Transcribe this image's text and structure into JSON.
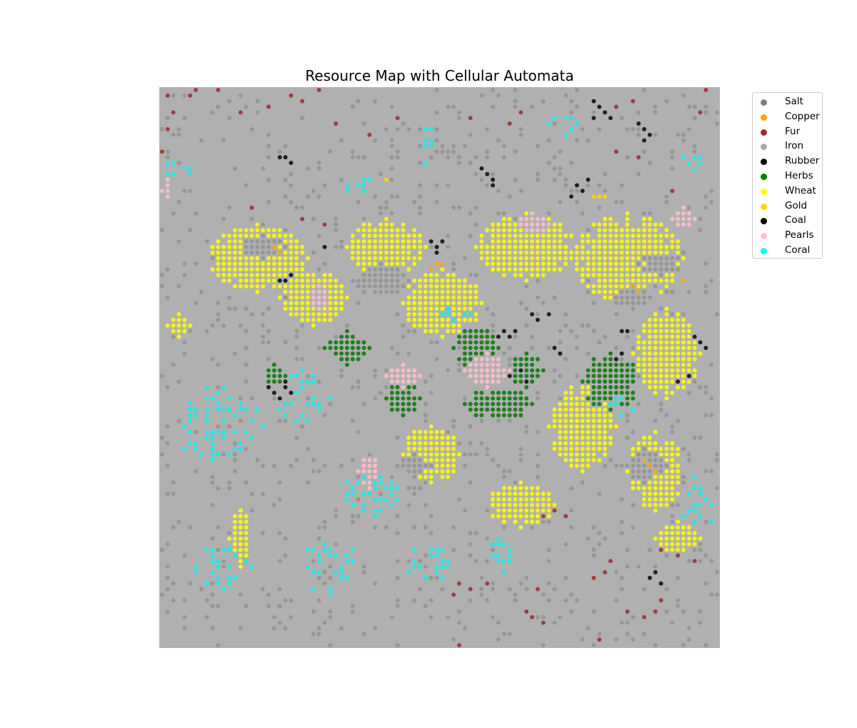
{
  "chart_data": {
    "type": "scatter",
    "title": "Resource Map with Cellular Automata",
    "xlabel": "",
    "ylabel": "",
    "axes_visible": false,
    "grid": false,
    "background_color": "#b0b0b0",
    "grid_size": [
      100,
      100
    ],
    "legend_position": "upper-right-outside",
    "legend": [
      {
        "name": "Salt",
        "color": "#808080"
      },
      {
        "name": "Copper",
        "color": "#ffa500"
      },
      {
        "name": "Fur",
        "color": "#a52a2a"
      },
      {
        "name": "Iron",
        "color": "#a9a9a9"
      },
      {
        "name": "Rubber",
        "color": "#000000"
      },
      {
        "name": "Herbs",
        "color": "#008000"
      },
      {
        "name": "Wheat",
        "color": "#ffff00"
      },
      {
        "name": "Gold",
        "color": "#ffd700"
      },
      {
        "name": "Coal",
        "color": "#000000"
      },
      {
        "name": "Pearls",
        "color": "#ffc0cb"
      },
      {
        "name": "Coral",
        "color": "#00ffff"
      }
    ],
    "regions": [
      {
        "series": "Wheat",
        "cx": 17,
        "cy": 30,
        "rx": 9,
        "ry": 6
      },
      {
        "series": "Wheat",
        "cx": 27,
        "cy": 37,
        "rx": 6,
        "ry": 5
      },
      {
        "series": "Wheat",
        "cx": 40,
        "cy": 28,
        "rx": 7,
        "ry": 5
      },
      {
        "series": "Wheat",
        "cx": 50,
        "cy": 38,
        "rx": 7,
        "ry": 6
      },
      {
        "series": "Wheat",
        "cx": 65,
        "cy": 28,
        "rx": 9,
        "ry": 6
      },
      {
        "series": "Wheat",
        "cx": 83,
        "cy": 30,
        "rx": 10,
        "ry": 8
      },
      {
        "series": "Wheat",
        "cx": 90,
        "cy": 47,
        "rx": 6,
        "ry": 8
      },
      {
        "series": "Wheat",
        "cx": 75,
        "cy": 60,
        "rx": 6,
        "ry": 8
      },
      {
        "series": "Wheat",
        "cx": 88,
        "cy": 68,
        "rx": 5,
        "ry": 7
      },
      {
        "series": "Wheat",
        "cx": 64,
        "cy": 74,
        "rx": 6,
        "ry": 4
      },
      {
        "series": "Wheat",
        "cx": 48,
        "cy": 65,
        "rx": 5,
        "ry": 5
      },
      {
        "series": "Wheat",
        "cx": 3,
        "cy": 42,
        "rx": 2,
        "ry": 2
      },
      {
        "series": "Wheat",
        "cx": 14,
        "cy": 80,
        "rx": 2,
        "ry": 5
      },
      {
        "series": "Wheat",
        "cx": 92,
        "cy": 80,
        "rx": 4,
        "ry": 3
      },
      {
        "series": "Herbs",
        "cx": 33,
        "cy": 46,
        "rx": 4,
        "ry": 3
      },
      {
        "series": "Herbs",
        "cx": 56,
        "cy": 46,
        "rx": 4,
        "ry": 4
      },
      {
        "series": "Herbs",
        "cx": 60,
        "cy": 56,
        "rx": 6,
        "ry": 3
      },
      {
        "series": "Herbs",
        "cx": 43,
        "cy": 55,
        "rx": 3,
        "ry": 3
      },
      {
        "series": "Herbs",
        "cx": 80,
        "cy": 52,
        "rx": 5,
        "ry": 5
      },
      {
        "series": "Herbs",
        "cx": 65,
        "cy": 50,
        "rx": 3,
        "ry": 3
      },
      {
        "series": "Herbs",
        "cx": 20,
        "cy": 51,
        "rx": 2,
        "ry": 2
      },
      {
        "series": "Salt",
        "cx": 18,
        "cy": 28,
        "rx": 4,
        "ry": 2
      },
      {
        "series": "Salt",
        "cx": 39,
        "cy": 34,
        "rx": 5,
        "ry": 3
      },
      {
        "series": "Salt",
        "cx": 89,
        "cy": 31,
        "rx": 4,
        "ry": 2
      },
      {
        "series": "Salt",
        "cx": 84,
        "cy": 37,
        "rx": 3,
        "ry": 2
      },
      {
        "series": "Salt",
        "cx": 86,
        "cy": 67,
        "rx": 4,
        "ry": 3
      },
      {
        "series": "Salt",
        "cx": 45,
        "cy": 67,
        "rx": 3,
        "ry": 2
      },
      {
        "series": "Pearls",
        "cx": 1,
        "cy": 18,
        "rx": 1,
        "ry": 2
      },
      {
        "series": "Pearls",
        "cx": 93,
        "cy": 23,
        "rx": 2,
        "ry": 2
      },
      {
        "series": "Pearls",
        "cx": 58,
        "cy": 50,
        "rx": 4,
        "ry": 3
      },
      {
        "series": "Pearls",
        "cx": 43,
        "cy": 51,
        "rx": 3,
        "ry": 2
      },
      {
        "series": "Pearls",
        "cx": 37,
        "cy": 68,
        "rx": 2,
        "ry": 3
      },
      {
        "series": "Pearls",
        "cx": 66,
        "cy": 24,
        "rx": 3,
        "ry": 2
      },
      {
        "series": "Pearls",
        "cx": 28,
        "cy": 37,
        "rx": 2,
        "ry": 2
      },
      {
        "series": "Coral",
        "cx": 47,
        "cy": 9,
        "rx": 2,
        "ry": 4
      },
      {
        "series": "Coral",
        "cx": 35,
        "cy": 17,
        "rx": 4,
        "ry": 2
      },
      {
        "series": "Coral",
        "cx": 10,
        "cy": 60,
        "rx": 8,
        "ry": 8
      },
      {
        "series": "Coral",
        "cx": 25,
        "cy": 55,
        "rx": 5,
        "ry": 5
      },
      {
        "series": "Coral",
        "cx": 38,
        "cy": 72,
        "rx": 6,
        "ry": 4
      },
      {
        "series": "Coral",
        "cx": 10,
        "cy": 85,
        "rx": 6,
        "ry": 5
      },
      {
        "series": "Coral",
        "cx": 30,
        "cy": 85,
        "rx": 6,
        "ry": 5
      },
      {
        "series": "Coral",
        "cx": 48,
        "cy": 84,
        "rx": 5,
        "ry": 4
      },
      {
        "series": "Coral",
        "cx": 60,
        "cy": 83,
        "rx": 4,
        "ry": 4
      },
      {
        "series": "Coral",
        "cx": 95,
        "cy": 74,
        "rx": 4,
        "ry": 5
      },
      {
        "series": "Coral",
        "cx": 3,
        "cy": 15,
        "rx": 3,
        "ry": 3
      },
      {
        "series": "Coral",
        "cx": 52,
        "cy": 40,
        "rx": 3,
        "ry": 2
      },
      {
        "series": "Coral",
        "cx": 95,
        "cy": 12,
        "rx": 2,
        "ry": 2
      },
      {
        "series": "Coral",
        "cx": 72,
        "cy": 6,
        "rx": 3,
        "ry": 2
      },
      {
        "series": "Coral",
        "cx": 82,
        "cy": 56,
        "rx": 3,
        "ry": 3
      }
    ],
    "points": [
      {
        "series": "Copper",
        "x": 20,
        "y": 28
      },
      {
        "series": "Copper",
        "x": 21,
        "y": 29
      },
      {
        "series": "Copper",
        "x": 49,
        "y": 31
      },
      {
        "series": "Copper",
        "x": 50,
        "y": 31
      },
      {
        "series": "Copper",
        "x": 48,
        "y": 32
      },
      {
        "series": "Copper",
        "x": 84,
        "y": 35
      },
      {
        "series": "Copper",
        "x": 85,
        "y": 36
      },
      {
        "series": "Copper",
        "x": 93,
        "y": 34
      },
      {
        "series": "Copper",
        "x": 86,
        "y": 66
      },
      {
        "series": "Copper",
        "x": 87,
        "y": 67
      },
      {
        "series": "Copper",
        "x": 88,
        "y": 68
      },
      {
        "series": "Gold",
        "x": 40,
        "y": 16
      },
      {
        "series": "Gold",
        "x": 77,
        "y": 19
      },
      {
        "series": "Gold",
        "x": 78,
        "y": 19
      },
      {
        "series": "Gold",
        "x": 79,
        "y": 19
      },
      {
        "series": "Rubber",
        "x": 77,
        "y": 2
      },
      {
        "series": "Rubber",
        "x": 78,
        "y": 3
      },
      {
        "series": "Rubber",
        "x": 79,
        "y": 4
      },
      {
        "series": "Rubber",
        "x": 77,
        "y": 5
      },
      {
        "series": "Rubber",
        "x": 80,
        "y": 5
      },
      {
        "series": "Rubber",
        "x": 85,
        "y": 6
      },
      {
        "series": "Rubber",
        "x": 86,
        "y": 7
      },
      {
        "series": "Rubber",
        "x": 87,
        "y": 8
      },
      {
        "series": "Rubber",
        "x": 86,
        "y": 9
      },
      {
        "series": "Rubber",
        "x": 57,
        "y": 14
      },
      {
        "series": "Rubber",
        "x": 58,
        "y": 15
      },
      {
        "series": "Rubber",
        "x": 59,
        "y": 16
      },
      {
        "series": "Rubber",
        "x": 59,
        "y": 17
      },
      {
        "series": "Rubber",
        "x": 74,
        "y": 17
      },
      {
        "series": "Rubber",
        "x": 75,
        "y": 18
      },
      {
        "series": "Rubber",
        "x": 73,
        "y": 19
      },
      {
        "series": "Rubber",
        "x": 76,
        "y": 16
      },
      {
        "series": "Rubber",
        "x": 48,
        "y": 27
      },
      {
        "series": "Rubber",
        "x": 49,
        "y": 28
      },
      {
        "series": "Rubber",
        "x": 50,
        "y": 27
      },
      {
        "series": "Rubber",
        "x": 49,
        "y": 29
      },
      {
        "series": "Rubber",
        "x": 22,
        "y": 12
      },
      {
        "series": "Rubber",
        "x": 23,
        "y": 13
      },
      {
        "series": "Rubber",
        "x": 21,
        "y": 12
      },
      {
        "series": "Coal",
        "x": 21,
        "y": 34
      },
      {
        "series": "Coal",
        "x": 22,
        "y": 34
      },
      {
        "series": "Coal",
        "x": 23,
        "y": 33
      },
      {
        "series": "Coal",
        "x": 19,
        "y": 53
      },
      {
        "series": "Coal",
        "x": 20,
        "y": 54
      },
      {
        "series": "Coal",
        "x": 22,
        "y": 53
      },
      {
        "series": "Coal",
        "x": 23,
        "y": 54
      },
      {
        "series": "Coal",
        "x": 21,
        "y": 55
      },
      {
        "series": "Coal",
        "x": 22,
        "y": 52
      },
      {
        "series": "Coal",
        "x": 61,
        "y": 43
      },
      {
        "series": "Coal",
        "x": 62,
        "y": 44
      },
      {
        "series": "Coal",
        "x": 63,
        "y": 43
      },
      {
        "series": "Coal",
        "x": 60,
        "y": 44
      },
      {
        "series": "Coal",
        "x": 66,
        "y": 40
      },
      {
        "series": "Coal",
        "x": 67,
        "y": 41
      },
      {
        "series": "Coal",
        "x": 69,
        "y": 40
      },
      {
        "series": "Coal",
        "x": 70,
        "y": 46
      },
      {
        "series": "Coal",
        "x": 71,
        "y": 47
      },
      {
        "series": "Coal",
        "x": 62,
        "y": 51
      },
      {
        "series": "Coal",
        "x": 64,
        "y": 50
      },
      {
        "series": "Coal",
        "x": 65,
        "y": 52
      },
      {
        "series": "Coal",
        "x": 82,
        "y": 43
      },
      {
        "series": "Coal",
        "x": 83,
        "y": 43
      },
      {
        "series": "Coal",
        "x": 81,
        "y": 48
      },
      {
        "series": "Coal",
        "x": 82,
        "y": 47
      },
      {
        "series": "Coal",
        "x": 95,
        "y": 44
      },
      {
        "series": "Coal",
        "x": 96,
        "y": 45
      },
      {
        "series": "Coal",
        "x": 97,
        "y": 46
      },
      {
        "series": "Coal",
        "x": 94,
        "y": 51
      },
      {
        "series": "Coal",
        "x": 92,
        "y": 52
      },
      {
        "series": "Coal",
        "x": 87,
        "y": 87
      },
      {
        "series": "Coal",
        "x": 88,
        "y": 86
      },
      {
        "series": "Coal",
        "x": 89,
        "y": 88
      },
      {
        "series": "Coal",
        "x": 29,
        "y": 28
      },
      {
        "series": "Fur",
        "x": 1,
        "y": 1
      },
      {
        "series": "Fur",
        "x": 5,
        "y": 1
      },
      {
        "series": "Fur",
        "x": 6,
        "y": 0
      },
      {
        "series": "Fur",
        "x": 2,
        "y": 4
      },
      {
        "series": "Fur",
        "x": 1,
        "y": 7
      },
      {
        "series": "Fur",
        "x": 0,
        "y": 11
      },
      {
        "series": "Fur",
        "x": 10,
        "y": 0
      },
      {
        "series": "Fur",
        "x": 14,
        "y": 4
      },
      {
        "series": "Fur",
        "x": 19,
        "y": 3
      },
      {
        "series": "Fur",
        "x": 23,
        "y": 1
      },
      {
        "series": "Fur",
        "x": 25,
        "y": 2
      },
      {
        "series": "Fur",
        "x": 28,
        "y": 0
      },
      {
        "series": "Fur",
        "x": 37,
        "y": 8
      },
      {
        "series": "Fur",
        "x": 31,
        "y": 6
      },
      {
        "series": "Fur",
        "x": 42,
        "y": 5
      },
      {
        "series": "Fur",
        "x": 55,
        "y": 5
      },
      {
        "series": "Fur",
        "x": 62,
        "y": 6
      },
      {
        "series": "Fur",
        "x": 64,
        "y": 4
      },
      {
        "series": "Fur",
        "x": 81,
        "y": 3
      },
      {
        "series": "Fur",
        "x": 84,
        "y": 2
      },
      {
        "series": "Fur",
        "x": 97,
        "y": 0
      },
      {
        "series": "Fur",
        "x": 96,
        "y": 4
      },
      {
        "series": "Fur",
        "x": 81,
        "y": 11
      },
      {
        "series": "Fur",
        "x": 85,
        "y": 12
      },
      {
        "series": "Fur",
        "x": 25,
        "y": 23
      },
      {
        "series": "Fur",
        "x": 29,
        "y": 24
      },
      {
        "series": "Fur",
        "x": 16,
        "y": 21
      },
      {
        "series": "Fur",
        "x": 91,
        "y": 18
      },
      {
        "series": "Fur",
        "x": 70,
        "y": 75
      },
      {
        "series": "Fur",
        "x": 72,
        "y": 76
      },
      {
        "series": "Fur",
        "x": 68,
        "y": 76
      },
      {
        "series": "Fur",
        "x": 53,
        "y": 88
      },
      {
        "series": "Fur",
        "x": 55,
        "y": 89
      },
      {
        "series": "Fur",
        "x": 58,
        "y": 88
      },
      {
        "series": "Fur",
        "x": 52,
        "y": 90
      },
      {
        "series": "Fur",
        "x": 65,
        "y": 93
      },
      {
        "series": "Fur",
        "x": 66,
        "y": 94
      },
      {
        "series": "Fur",
        "x": 68,
        "y": 95
      },
      {
        "series": "Fur",
        "x": 67,
        "y": 89
      },
      {
        "series": "Fur",
        "x": 77,
        "y": 87
      },
      {
        "series": "Fur",
        "x": 79,
        "y": 86
      },
      {
        "series": "Fur",
        "x": 80,
        "y": 84
      },
      {
        "series": "Fur",
        "x": 83,
        "y": 93
      },
      {
        "series": "Fur",
        "x": 86,
        "y": 94
      },
      {
        "series": "Fur",
        "x": 88,
        "y": 93
      },
      {
        "series": "Fur",
        "x": 89,
        "y": 91
      },
      {
        "series": "Fur",
        "x": 89,
        "y": 82
      },
      {
        "series": "Fur",
        "x": 92,
        "y": 83
      },
      {
        "series": "Fur",
        "x": 95,
        "y": 84
      },
      {
        "series": "Fur",
        "x": 53,
        "y": 99
      },
      {
        "series": "Fur",
        "x": 78,
        "y": 98
      }
    ]
  }
}
